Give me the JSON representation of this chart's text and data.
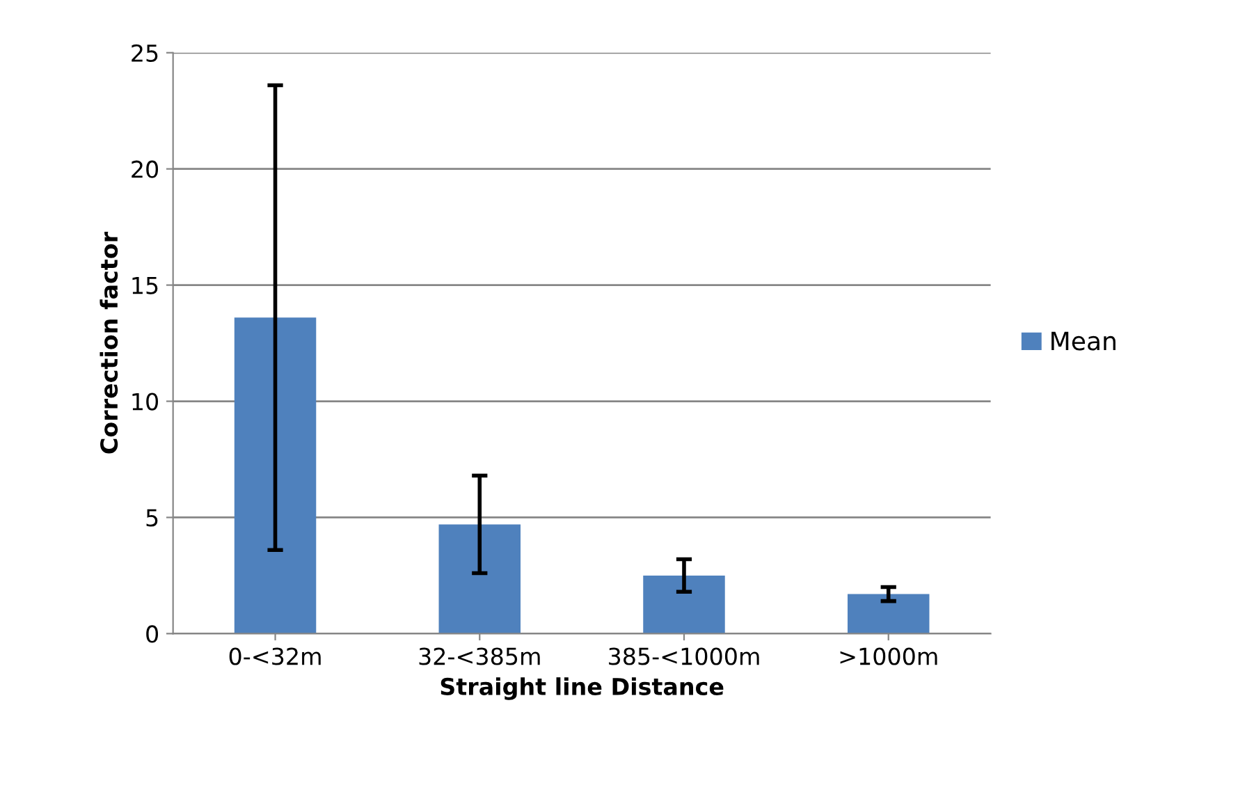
{
  "chart_data": {
    "type": "bar",
    "xlabel": "Straight line Distance",
    "ylabel": "Correction factor",
    "categories": [
      "0-<32m",
      "32-<385m",
      "385-<1000m",
      ">1000m"
    ],
    "series": [
      {
        "name": "Mean",
        "color": "#4f81bd",
        "values": [
          13.6,
          4.7,
          2.5,
          1.7
        ],
        "errors": [
          10.0,
          2.1,
          0.7,
          0.3
        ]
      }
    ],
    "ylim": [
      0,
      25
    ],
    "yticks": [
      0,
      5,
      10,
      15,
      20,
      25
    ],
    "grid": "y",
    "legend": "right"
  }
}
